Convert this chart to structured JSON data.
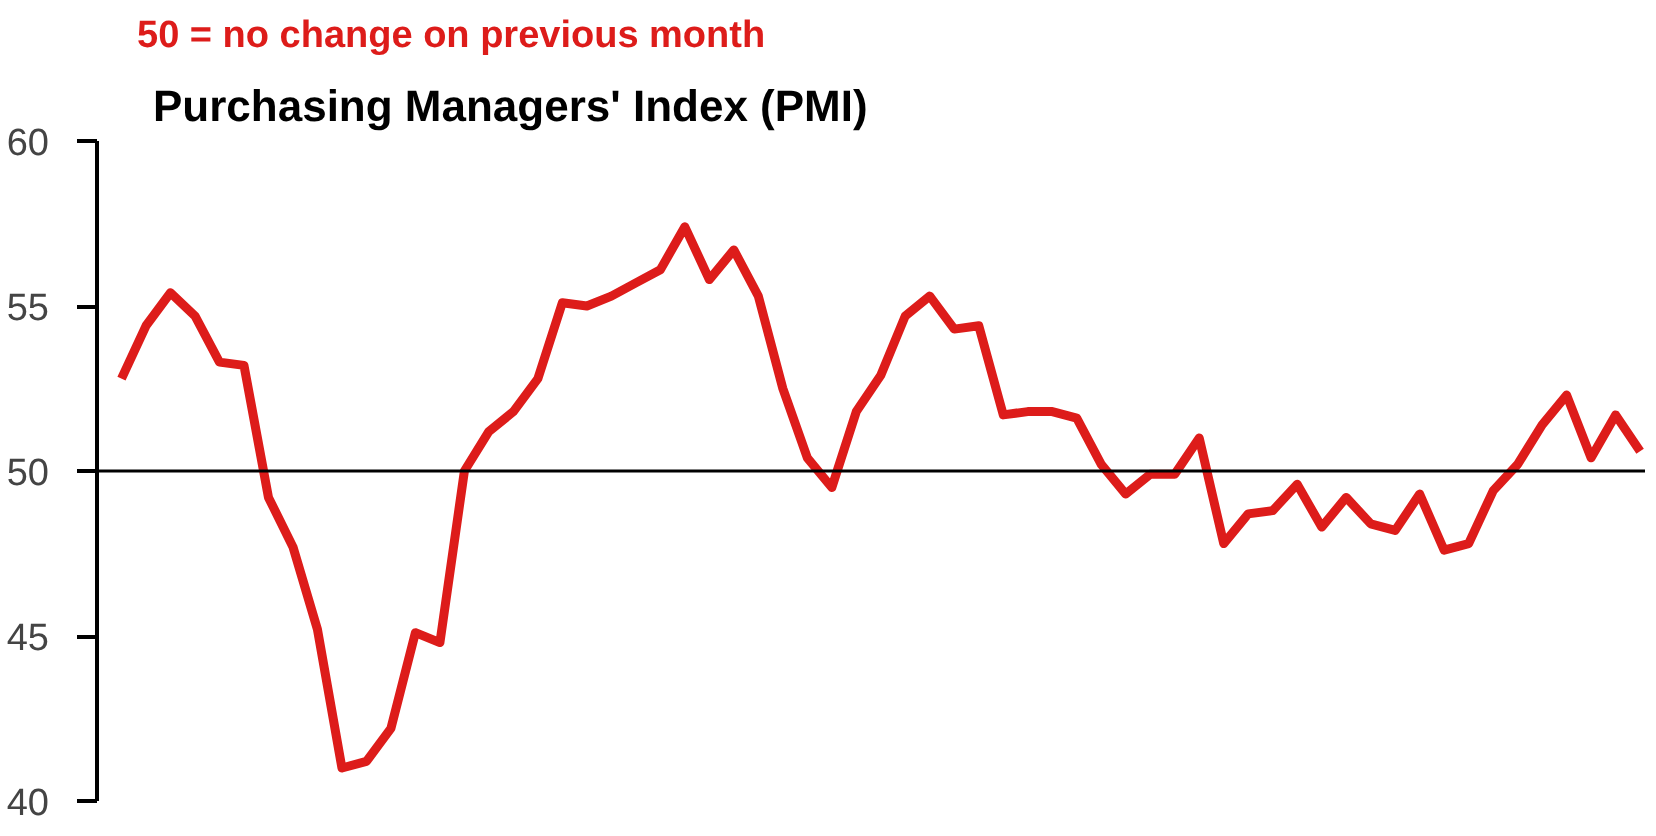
{
  "chart_data": {
    "type": "line",
    "title": "Purchasing Managers' Index (PMI)",
    "annotations": [
      "50 =  no change on previous month"
    ],
    "categories": [
      null,
      null,
      null,
      null,
      null,
      null,
      null,
      null,
      null,
      null,
      null,
      null,
      null,
      null,
      null,
      null,
      null,
      null,
      null,
      null,
      null,
      null,
      null,
      null,
      null,
      null,
      null,
      null,
      null,
      null,
      null,
      null,
      null,
      null,
      null,
      null,
      null,
      null,
      null,
      null,
      null,
      null,
      null,
      null,
      null,
      null,
      null,
      null,
      null,
      null,
      null,
      null,
      null,
      null,
      null,
      null,
      null,
      null,
      null,
      null,
      null,
      null,
      null
    ],
    "series": [
      {
        "color": "#dd1c1a",
        "values": [
          52.8,
          54.4,
          55.4,
          54.7,
          53.3,
          53.2,
          49.2,
          47.7,
          45.2,
          41.0,
          41.2,
          42.2,
          45.1,
          44.8,
          50.0,
          51.2,
          51.8,
          52.8,
          55.1,
          55.0,
          55.3,
          55.7,
          56.1,
          57.4,
          55.8,
          56.7,
          55.3,
          52.5,
          50.4,
          49.5,
          51.8,
          52.9,
          54.7,
          55.3,
          54.3,
          54.4,
          51.7,
          51.8,
          51.8,
          51.6,
          50.2,
          49.3,
          49.9,
          49.9,
          51.0,
          47.8,
          48.7,
          48.8,
          49.6,
          48.3,
          49.2,
          48.4,
          48.2,
          49.3,
          47.6,
          47.8,
          49.4,
          50.2,
          51.4,
          52.3,
          50.4,
          51.7,
          50.6
        ]
      }
    ],
    "ylim": [
      40,
      60
    ],
    "yticks": [
      40,
      45,
      50,
      55,
      60
    ],
    "ref_lines": [
      {
        "axis": "y",
        "value": 50,
        "color": "#000000"
      }
    ],
    "grid": false
  }
}
